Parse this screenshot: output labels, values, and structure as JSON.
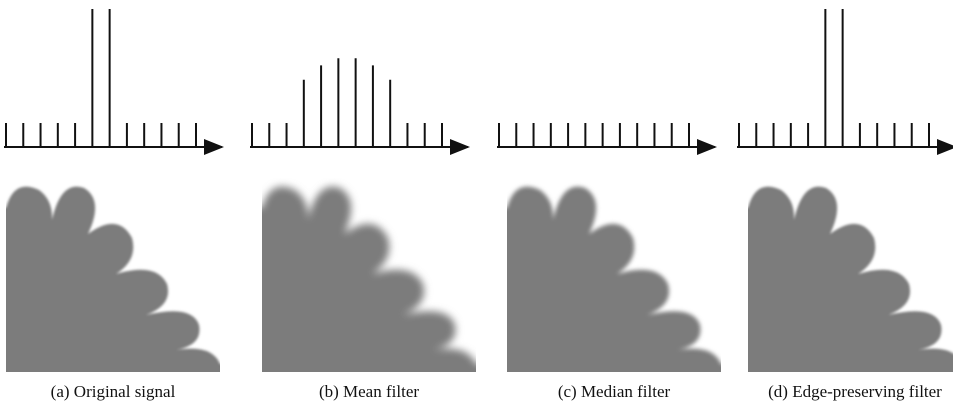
{
  "panels": [
    {
      "caption": "(a) Original signal",
      "signal": [
        1,
        1,
        1,
        1,
        1,
        5.75,
        5.75,
        1,
        1,
        1,
        1,
        1
      ]
    },
    {
      "caption": "(b) Mean filter",
      "signal": [
        1,
        1,
        1,
        2.8,
        3.4,
        3.7,
        3.7,
        3.4,
        2.8,
        1,
        1,
        1
      ]
    },
    {
      "caption": "(c) Median filter",
      "signal": [
        1,
        1,
        1,
        1,
        1,
        1,
        1,
        1,
        1,
        1,
        1,
        1
      ]
    },
    {
      "caption": "(d) Edge-preserving filter",
      "signal": [
        1,
        1,
        1,
        1,
        1,
        5.75,
        5.75,
        1,
        1,
        1,
        1,
        1
      ]
    }
  ]
}
